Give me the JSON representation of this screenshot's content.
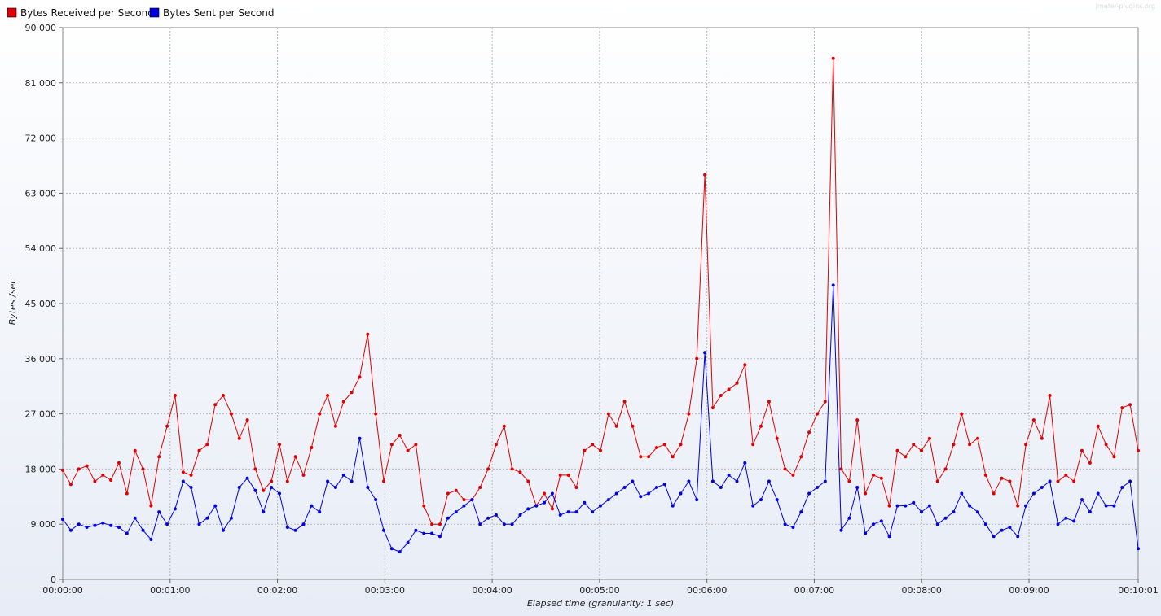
{
  "watermark": "jmeter-plugins.org",
  "chart_data": {
    "type": "line",
    "title": "",
    "xlabel": "Elapsed time (granularity: 1 sec)",
    "ylabel": "Bytes /sec",
    "ylim": [
      0,
      90000
    ],
    "xlim_seconds": [
      0,
      601
    ],
    "y_ticks": [
      0,
      9000,
      18000,
      27000,
      36000,
      45000,
      54000,
      63000,
      72000,
      81000,
      90000
    ],
    "y_tick_labels": [
      "0",
      "9 000",
      "18 000",
      "27 000",
      "36 000",
      "45 000",
      "54 000",
      "63 000",
      "72 000",
      "81 000",
      "90 000"
    ],
    "x_ticks_seconds": [
      0,
      60,
      120,
      180,
      240,
      300,
      360,
      420,
      480,
      540,
      601
    ],
    "x_tick_labels": [
      "00:00:00",
      "00:01:00",
      "00:02:00",
      "00:03:00",
      "00:04:00",
      "00:05:00",
      "00:06:00",
      "00:07:00",
      "00:08:00",
      "00:09:00",
      "00:10:01"
    ],
    "grid": true,
    "legend_position": "top-left",
    "x_step_seconds": 5,
    "series": [
      {
        "name": "Bytes Received per Second",
        "color": "#e00000",
        "values": [
          17800,
          15500,
          18000,
          18500,
          16000,
          17000,
          16200,
          19000,
          14000,
          21000,
          18000,
          12000,
          20000,
          25000,
          30000,
          17500,
          17000,
          21000,
          22000,
          28500,
          30000,
          27000,
          23000,
          26000,
          18000,
          14500,
          16000,
          22000,
          16000,
          20000,
          17000,
          21500,
          27000,
          30000,
          25000,
          29000,
          30500,
          33000,
          40000,
          27000,
          16000,
          22000,
          23500,
          21000,
          22000,
          12000,
          9000,
          9000,
          14000,
          14500,
          13000,
          13000,
          15000,
          18000,
          22000,
          25000,
          18000,
          17500,
          16000,
          12000,
          14000,
          11500,
          17000,
          17000,
          15000,
          21000,
          22000,
          21000,
          27000,
          25000,
          29000,
          25000,
          20000,
          20000,
          21500,
          22000,
          20000,
          22000,
          27000,
          36000,
          66000,
          28000,
          30000,
          31000,
          32000,
          35000,
          22000,
          25000,
          29000,
          23000,
          18000,
          17000,
          20000,
          24000,
          27000,
          29000,
          85000,
          18000,
          16000,
          26000,
          14000,
          17000,
          16500,
          12000,
          21000,
          20000,
          22000,
          21000,
          23000,
          16000,
          18000,
          22000,
          27000,
          22000,
          23000,
          17000,
          14000,
          16500,
          16000,
          12000,
          22000,
          26000,
          23000,
          30000,
          16000,
          17000,
          16000,
          21000,
          19000,
          25000,
          22000,
          20000,
          28000,
          28500,
          21000
        ],
        "note": "values sampled every 5 s from 0 to 670 s scaled onto the 601 s axis"
      },
      {
        "name": "Bytes Sent per Second",
        "color": "#0000e0",
        "values": [
          9800,
          8000,
          9000,
          8500,
          8800,
          9200,
          8800,
          8500,
          7500,
          10000,
          8000,
          6500,
          11000,
          9000,
          11500,
          16000,
          15000,
          9000,
          10000,
          12000,
          8000,
          10000,
          15000,
          16500,
          14500,
          11000,
          15000,
          14000,
          8500,
          8000,
          9000,
          12000,
          11000,
          16000,
          15000,
          17000,
          16000,
          23000,
          15000,
          13000,
          8000,
          5000,
          4500,
          6000,
          8000,
          7500,
          7500,
          7000,
          10000,
          11000,
          12000,
          13000,
          9000,
          10000,
          10500,
          9000,
          9000,
          10500,
          11500,
          12000,
          12500,
          14000,
          10500,
          11000,
          11000,
          12500,
          11000,
          12000,
          13000,
          14000,
          15000,
          16000,
          13500,
          14000,
          15000,
          15500,
          12000,
          14000,
          16000,
          13000,
          37000,
          16000,
          15000,
          17000,
          16000,
          19000,
          12000,
          13000,
          16000,
          13000,
          9000,
          8500,
          11000,
          14000,
          15000,
          16000,
          48000,
          8000,
          10000,
          15000,
          7500,
          9000,
          9500,
          7000,
          12000,
          12000,
          12500,
          11000,
          12000,
          9000,
          10000,
          11000,
          14000,
          12000,
          11000,
          9000,
          7000,
          8000,
          8500,
          7000,
          12000,
          14000,
          15000,
          16000,
          9000,
          10000,
          9500,
          13000,
          11000,
          14000,
          12000,
          12000,
          15000,
          16000,
          5000
        ],
        "note": "values sampled every 5 s from 0 to 670 s scaled onto the 601 s axis"
      }
    ]
  }
}
